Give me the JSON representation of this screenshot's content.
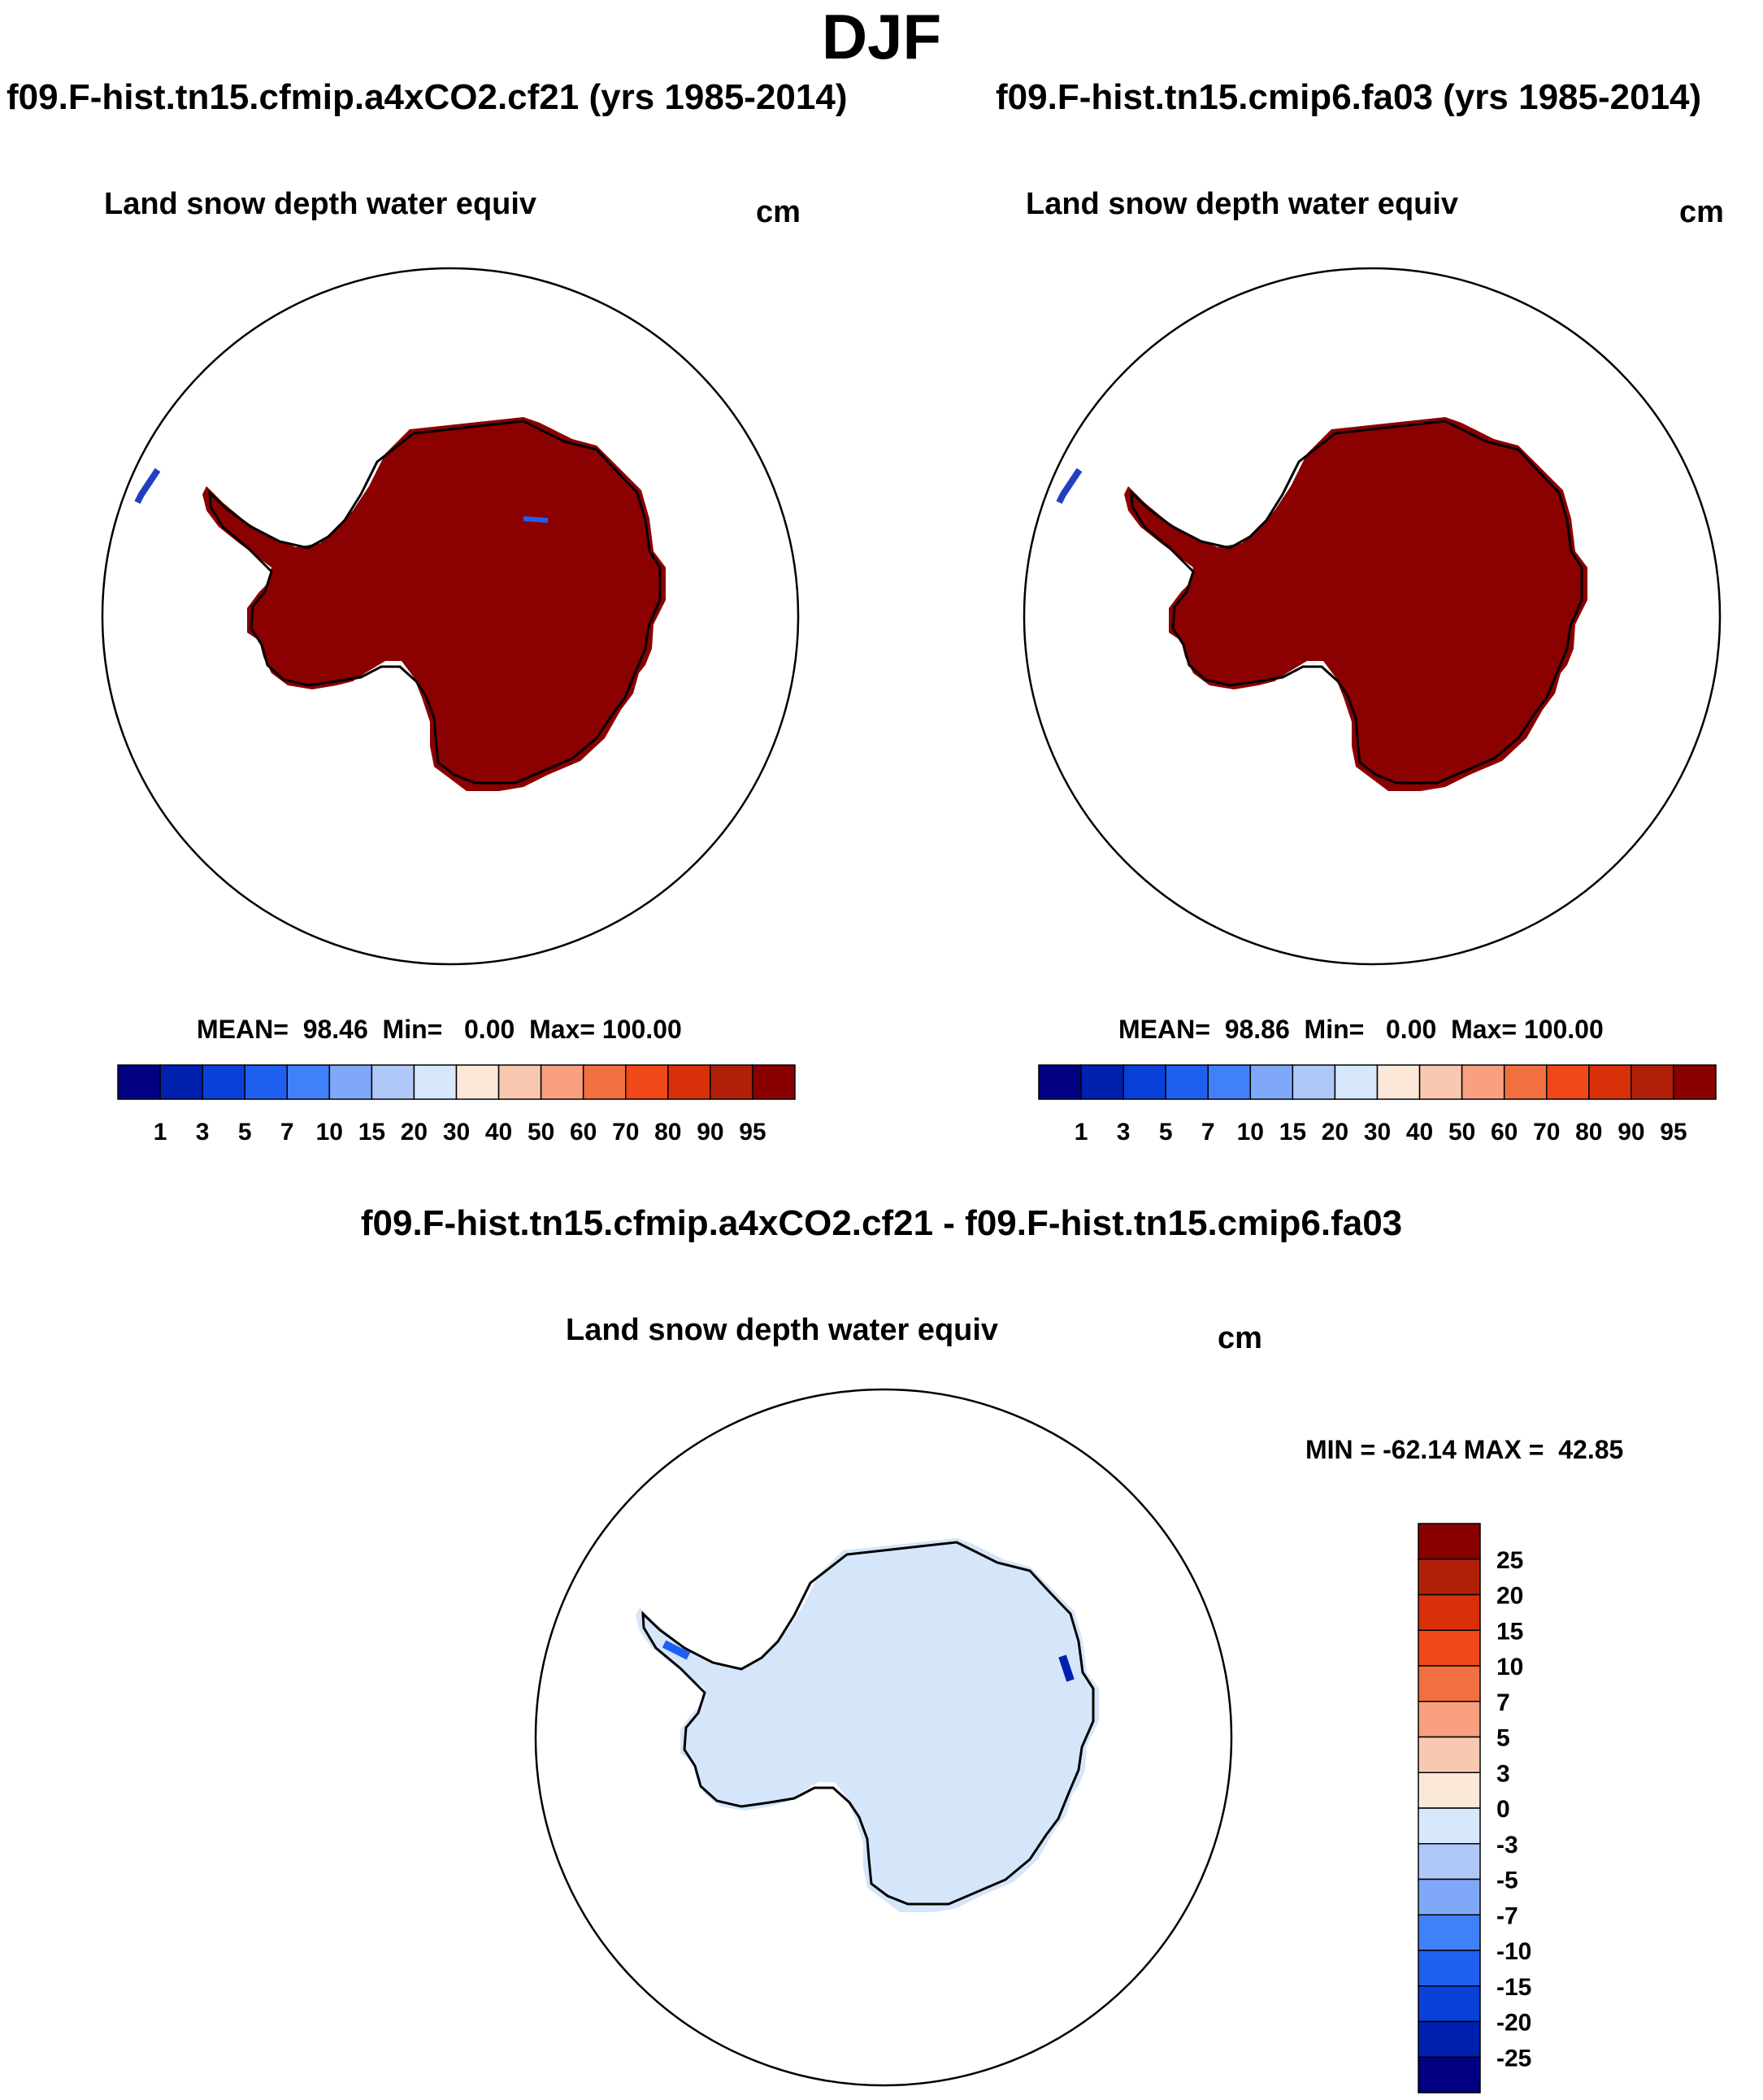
{
  "page_title": "DJF",
  "panels": [
    {
      "run_label": "f09.F-hist.tn15.cfmip.a4xCO2.cf21 (yrs 1985-2014)",
      "variable": "Land snow depth water equiv",
      "units": "cm",
      "stats": "MEAN=  98.46  Min=   0.00  Max= 100.00"
    },
    {
      "run_label": "f09.F-hist.tn15.cmip6.fa03 (yrs 1985-2014)",
      "variable": "Land snow depth water equiv",
      "units": "cm",
      "stats": "MEAN=  98.86  Min=   0.00  Max= 100.00"
    }
  ],
  "abs_colorbar": {
    "labels": [
      "1",
      "3",
      "5",
      "7",
      "10",
      "15",
      "20",
      "30",
      "40",
      "50",
      "60",
      "70",
      "80",
      "90",
      "95"
    ],
    "colors": [
      "#000080",
      "#0020b0",
      "#0840d8",
      "#2060f0",
      "#4080f8",
      "#80a8f8",
      "#b0c8f8",
      "#d8e8fc",
      "#fce8d8",
      "#f8c8b0",
      "#f8a080",
      "#f07040",
      "#f04818",
      "#d83008",
      "#b02008",
      "#880000"
    ]
  },
  "difference": {
    "title": "f09.F-hist.tn15.cfmip.a4xCO2.cf21 - f09.F-hist.tn15.cmip6.fa03",
    "variable": "Land snow depth water equiv",
    "units": "cm",
    "minmax": "MIN = -62.14 MAX =  42.85"
  },
  "diff_colorbar": {
    "labels": [
      "25",
      "20",
      "15",
      "10",
      "7",
      "5",
      "3",
      "0",
      "-3",
      "-5",
      "-7",
      "-10",
      "-15",
      "-20",
      "-25"
    ],
    "colors": [
      "#880000",
      "#b02008",
      "#d83008",
      "#f04818",
      "#f07040",
      "#f8a080",
      "#f8c8b0",
      "#fce8d8",
      "#d8e8fc",
      "#b0c8f8",
      "#80a8f8",
      "#4080f8",
      "#2060f0",
      "#0840d8",
      "#0020b0",
      "#000080"
    ]
  },
  "map_fill": {
    "abs_field": "#8b0000",
    "diff_field": "#d6e6fa",
    "coastline": "#000000"
  }
}
